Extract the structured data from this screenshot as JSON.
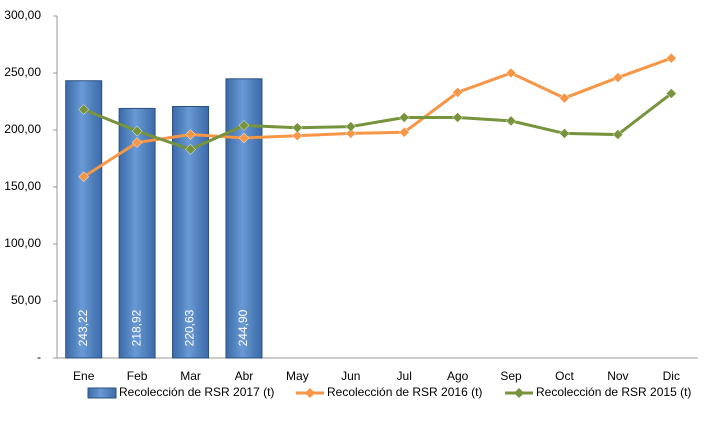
{
  "chart_data": {
    "type": "bar-line",
    "categories": [
      "Ene",
      "Feb",
      "Mar",
      "Abr",
      "May",
      "Jun",
      "Jul",
      "Ago",
      "Sep",
      "Oct",
      "Nov",
      "Dic"
    ],
    "series": [
      {
        "name": "Recolección de RSR 2017 (t)",
        "type": "bar",
        "color": "#4f81bd",
        "values": [
          243.22,
          218.92,
          220.63,
          244.9,
          null,
          null,
          null,
          null,
          null,
          null,
          null,
          null
        ],
        "value_labels": [
          "243,22",
          "218,92",
          "220,63",
          "244,90",
          null,
          null,
          null,
          null,
          null,
          null,
          null,
          null
        ]
      },
      {
        "name": "Recolección de RSR 2016 (t)",
        "type": "line",
        "color": "#f79646",
        "values": [
          159,
          189,
          196,
          193,
          195,
          197,
          198,
          233,
          250,
          228,
          246,
          263
        ]
      },
      {
        "name": "Recolección de RSR 2015 (t)",
        "type": "line",
        "color": "#77933c",
        "values": [
          218,
          199,
          183,
          204,
          202,
          203,
          211,
          211,
          208,
          197,
          196,
          232
        ]
      }
    ],
    "ylim": [
      0,
      300
    ],
    "yticks": [
      {
        "value": 0,
        "label": "-"
      },
      {
        "value": 50,
        "label": "50,00"
      },
      {
        "value": 100,
        "label": "100,00"
      },
      {
        "value": 150,
        "label": "150,00"
      },
      {
        "value": 200,
        "label": "200,00"
      },
      {
        "value": 250,
        "label": "250,00"
      },
      {
        "value": 300,
        "label": "300,00"
      }
    ],
    "legend": "bottom"
  }
}
